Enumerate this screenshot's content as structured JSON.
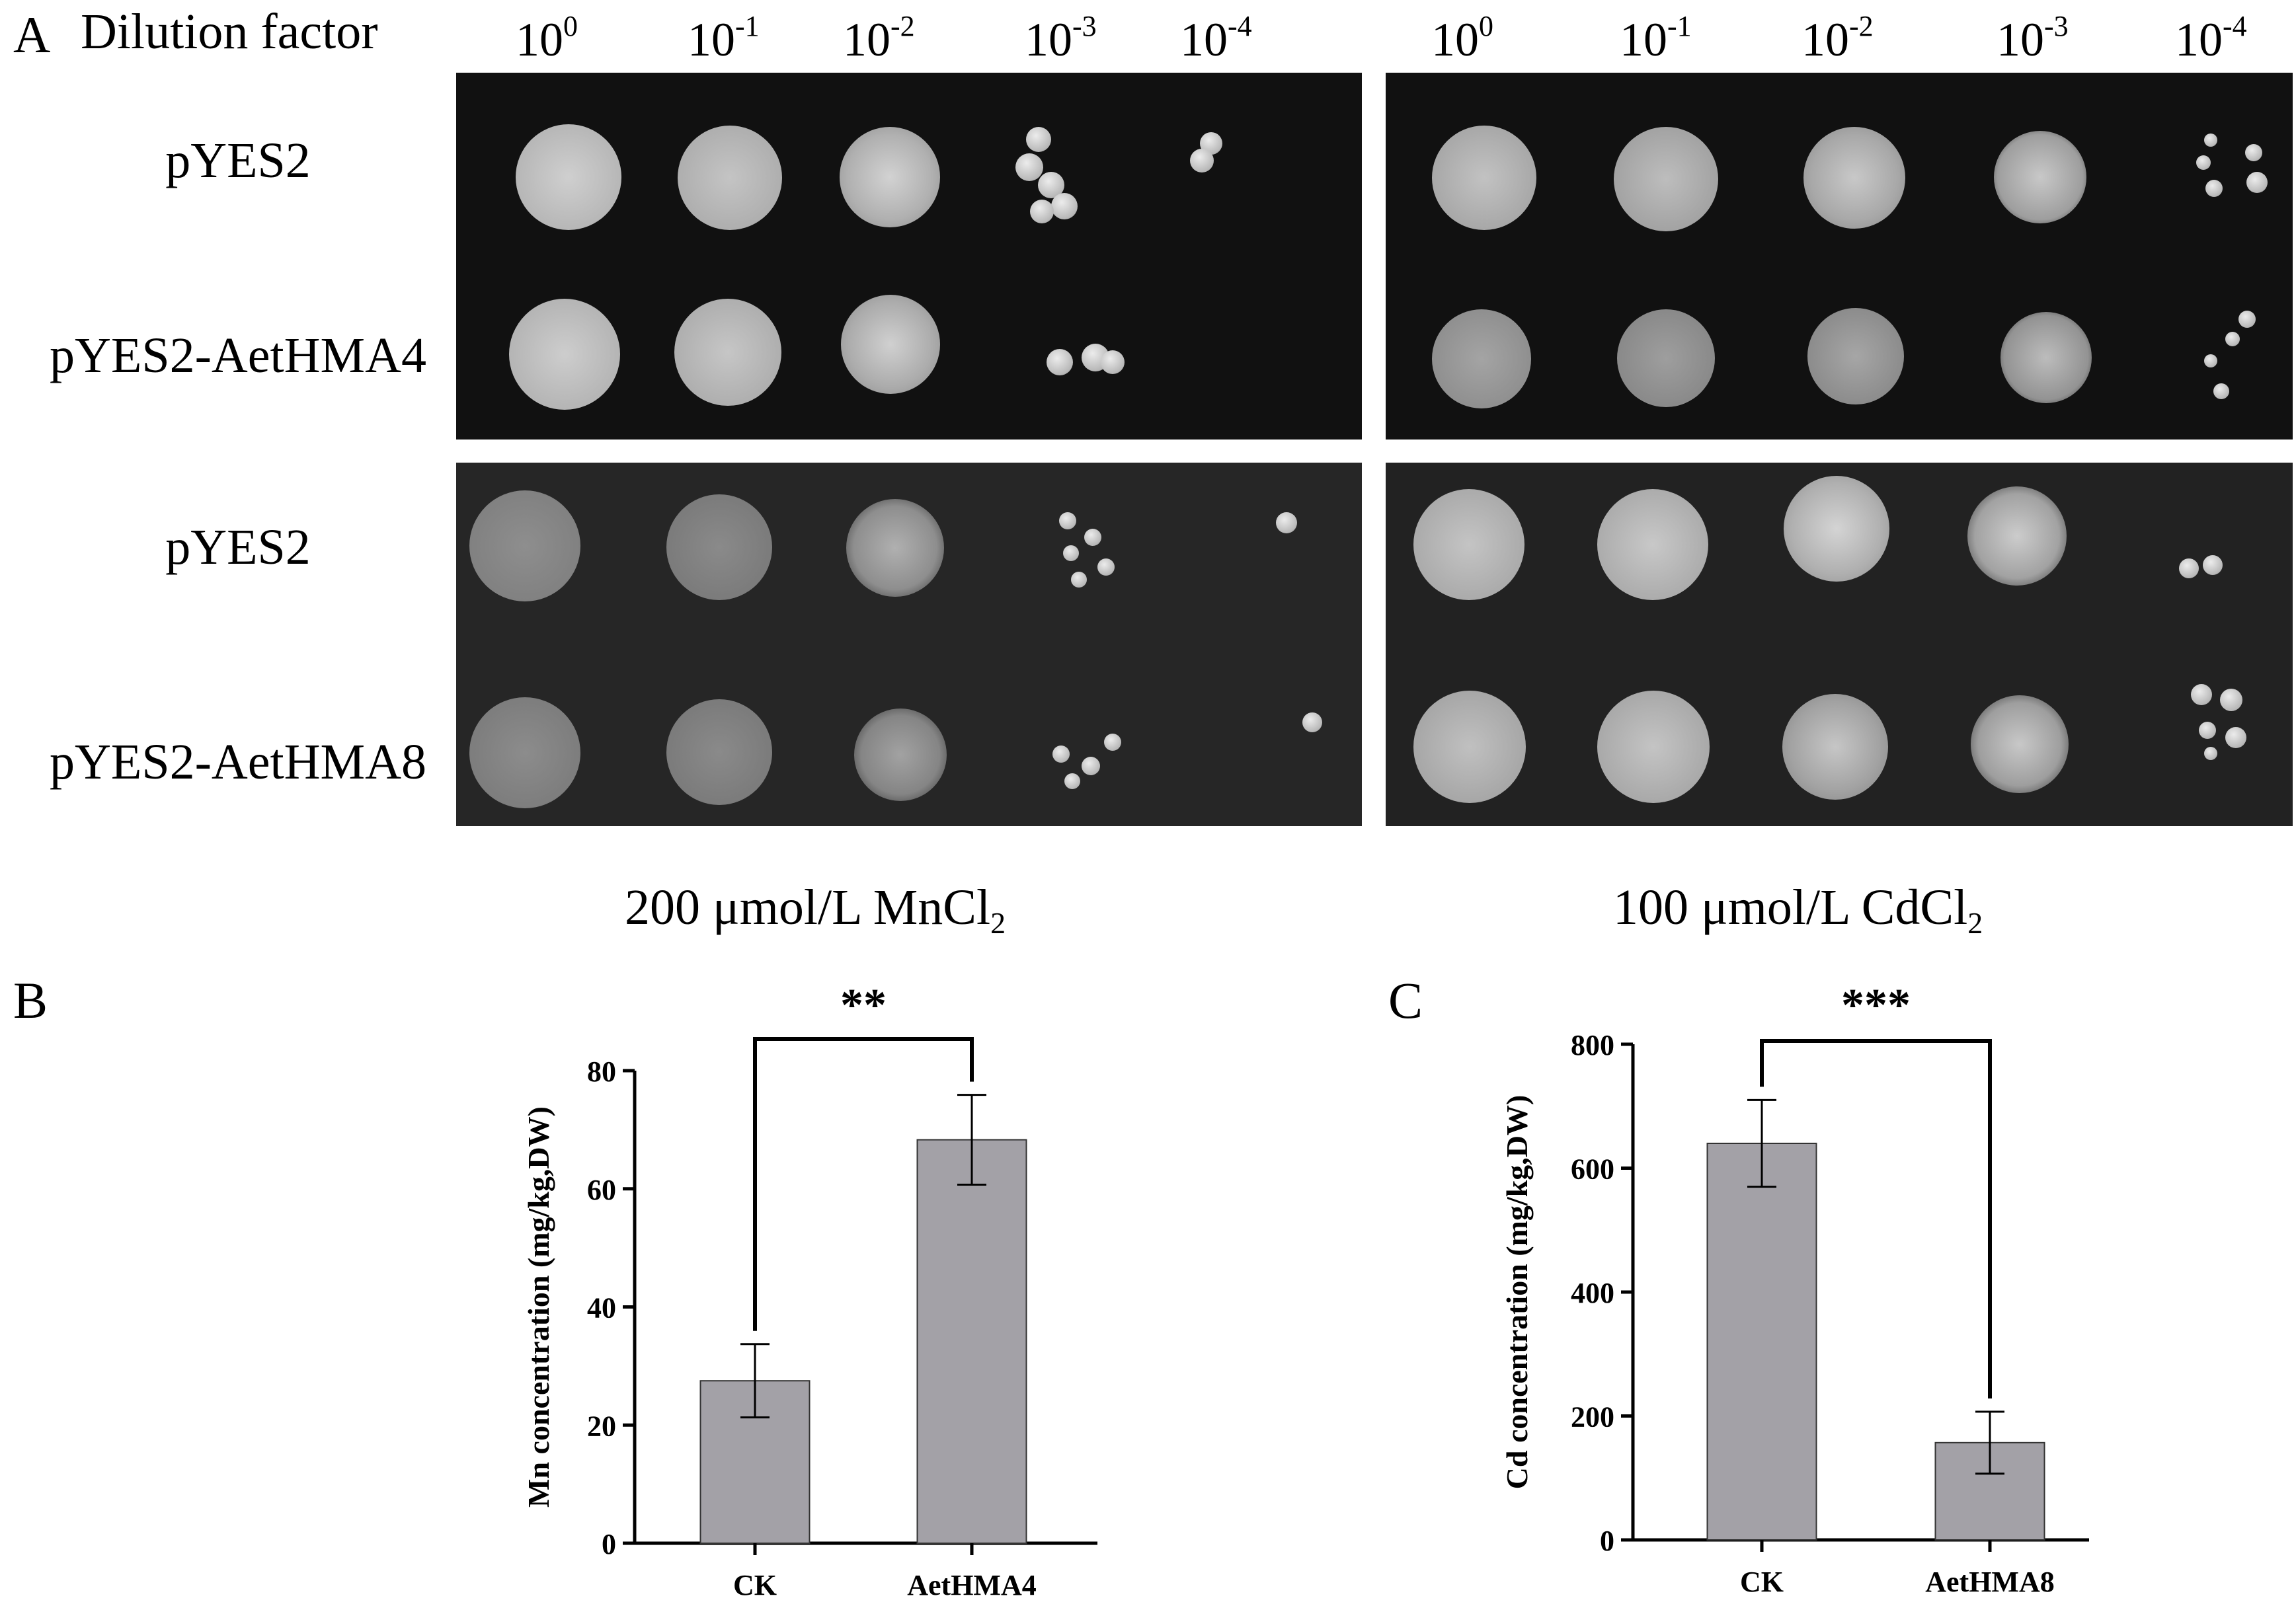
{
  "panel_a": {
    "letter": "A",
    "dilution_title": "Dilution factor",
    "dilution_base": "10",
    "dilutions_left": [
      "0",
      "-1",
      "-2",
      "-3",
      "-4"
    ],
    "dilutions_right": [
      "0",
      "-1",
      "-2",
      "-3",
      "-4"
    ],
    "strains_top": [
      "pYES2",
      "pYES2-AetHMA4"
    ],
    "strains_bottom": [
      "pYES2",
      "pYES2-AetHMA8"
    ],
    "condition_left": "200 μmol/L MnCl",
    "condition_left_sub": "2",
    "condition_right": "100 μmol/L CdCl",
    "condition_right_sub": "2"
  },
  "chart_data": [
    {
      "panel": "B",
      "type": "bar",
      "categories": [
        "CK",
        "AetHMA4"
      ],
      "values": [
        27.5,
        68.3
      ],
      "errors": [
        6.2,
        7.6
      ],
      "ylabel": "Mn concentration (mg/kg,DW)",
      "ylim": [
        0,
        80
      ],
      "yticks": [
        0,
        20,
        40,
        60,
        80
      ],
      "significance": "**",
      "bar_color": "#a3a1a7"
    },
    {
      "panel": "C",
      "type": "bar",
      "categories": [
        "CK",
        "AetHMA8"
      ],
      "values": [
        640,
        157
      ],
      "errors": [
        70,
        50
      ],
      "ylabel": "Cd concentration (mg/kg,DW)",
      "ylim": [
        0,
        800
      ],
      "yticks": [
        0,
        200,
        400,
        600,
        800
      ],
      "significance": "***",
      "bar_color": "#a3a1a7"
    }
  ]
}
